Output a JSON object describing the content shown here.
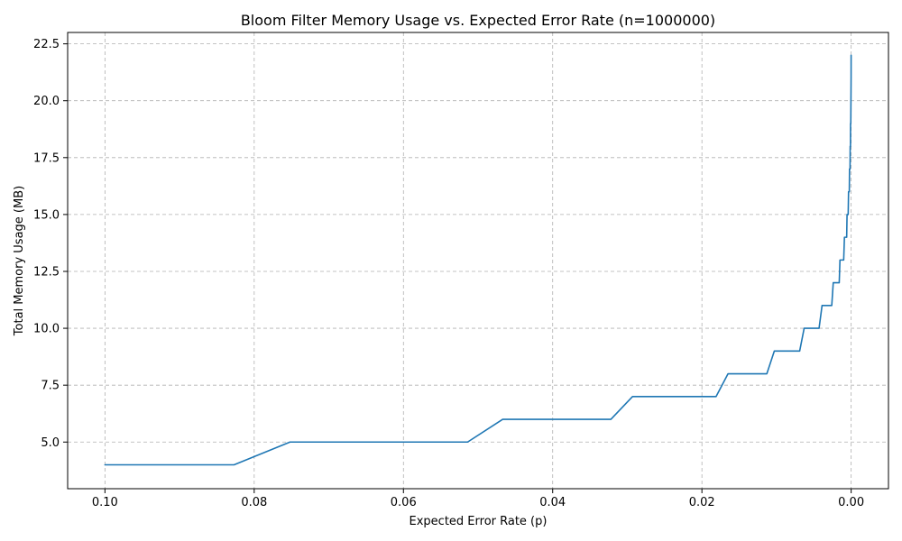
{
  "chart_data": {
    "type": "line",
    "title": "Bloom Filter Memory Usage vs. Expected Error Rate (n=1000000)",
    "xlabel": "Expected Error Rate (p)",
    "ylabel": "Total Memory Usage (MB)",
    "x_inverted": true,
    "xlim": [
      0.105,
      -0.005
    ],
    "ylim": [
      2.95,
      23.0
    ],
    "grid": true,
    "line_color": "#1f77b4",
    "x_ticks": [
      0.1,
      0.08,
      0.06,
      0.04,
      0.02,
      0.0
    ],
    "x_tick_labels": [
      "0.10",
      "0.08",
      "0.06",
      "0.04",
      "0.02",
      "0.00"
    ],
    "y_ticks": [
      5.0,
      7.5,
      10.0,
      12.5,
      15.0,
      17.5,
      20.0,
      22.5
    ],
    "y_tick_labels": [
      "5.0",
      "7.5",
      "10.0",
      "12.5",
      "15.0",
      "17.5",
      "20.0",
      "22.5"
    ],
    "series": [
      {
        "x": [
          0.1,
          0.0827,
          0.0752,
          0.0514,
          0.0467,
          0.0322,
          0.0293,
          0.0181,
          0.0165,
          0.0113,
          0.0103,
          0.0069,
          0.0063,
          0.0043,
          0.0039,
          0.0026,
          0.0024,
          0.0016,
          0.0015,
          0.001,
          0.0009,
          0.0006,
          0.00055,
          0.0004,
          0.00035,
          0.00025,
          0.00022,
          0.00015,
          0.00013,
          9e-05,
          8e-05,
          5e-05,
          3e-05,
          1e-05,
          5e-06
        ],
        "y": [
          4,
          4,
          5,
          5,
          6,
          6,
          7,
          7,
          8,
          8,
          9,
          9,
          10,
          10,
          11,
          11,
          12,
          12,
          13,
          13,
          14,
          14,
          15,
          15,
          16,
          16,
          17,
          17,
          18,
          18,
          19,
          19,
          20,
          21,
          22
        ]
      }
    ]
  }
}
